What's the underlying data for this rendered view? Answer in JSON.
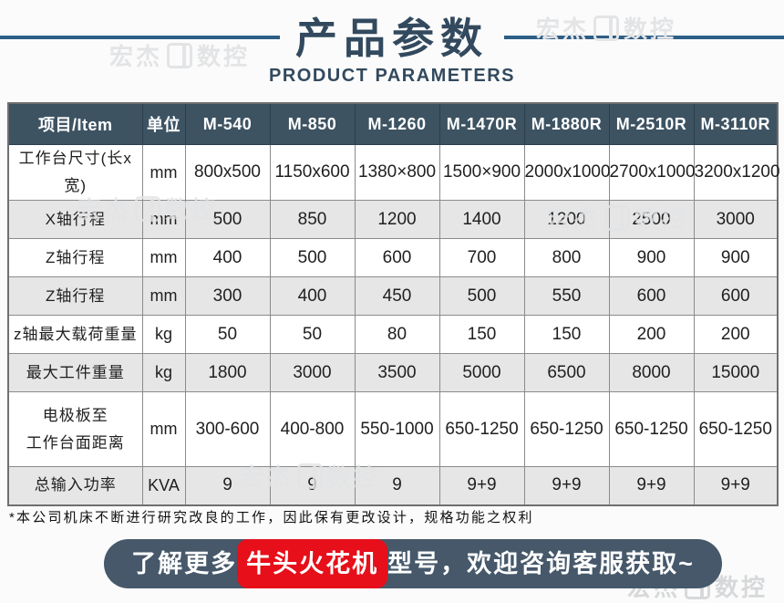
{
  "title": {
    "zh": "产品参数",
    "en": "PRODUCT PARAMETERS"
  },
  "table": {
    "header": [
      "项目/Item",
      "单位",
      "M-540",
      "M-850",
      "M-1260",
      "M-1470R",
      "M-1880R",
      "M-2510R",
      "M-3110R"
    ],
    "rows": [
      {
        "item": [
          "工作台尺寸(长x宽)"
        ],
        "unit": "mm",
        "values": [
          "800x500",
          "1150x600",
          "1380×800",
          "1500×900",
          "2000x1000",
          "2700x1000",
          "3200x1200"
        ]
      },
      {
        "item": [
          "X轴行程"
        ],
        "unit": "mm",
        "values": [
          "500",
          "850",
          "1200",
          "1400",
          "1200",
          "2500",
          "3000"
        ]
      },
      {
        "item": [
          "Z轴行程"
        ],
        "unit": "mm",
        "values": [
          "400",
          "500",
          "600",
          "700",
          "800",
          "900",
          "900"
        ]
      },
      {
        "item": [
          "Z轴行程"
        ],
        "unit": "mm",
        "values": [
          "300",
          "400",
          "450",
          "500",
          "550",
          "600",
          "600"
        ]
      },
      {
        "item": [
          "z轴最大载荷重量"
        ],
        "unit": "kg",
        "values": [
          "50",
          "50",
          "80",
          "150",
          "150",
          "200",
          "200"
        ]
      },
      {
        "item": [
          "最大工件重量"
        ],
        "unit": "kg",
        "values": [
          "1800",
          "3000",
          "3500",
          "5000",
          "6500",
          "8000",
          "15000"
        ]
      },
      {
        "item": [
          "电极板至",
          "工作台面距离"
        ],
        "unit": "mm",
        "values": [
          "300-600",
          "400-800",
          "550-1000",
          "650-1250",
          "650-1250",
          "650-1250",
          "650-1250"
        ]
      },
      {
        "item": [
          "总输入功率"
        ],
        "unit": "KVA",
        "values": [
          "9",
          "9",
          "9",
          "9+9",
          "9+9",
          "9+9",
          "9+9"
        ]
      }
    ]
  },
  "note": "*本公司机床不断进行研究改良的工作，因此保有更改设计，规格功能之权利",
  "banner": {
    "prefix": "了解更多",
    "highlight": "牛头火花机",
    "suffix": "型号，欢迎咨询客服获取~"
  },
  "watermark": {
    "left": "宏杰",
    "right": "数控"
  },
  "colors": {
    "title_navy": "#32495e",
    "decor_line_blue": "#2d5e86",
    "table_header_bg": "#3d5362",
    "row_alt_gray": "#e6e6e6",
    "banner_bg": "#46586a",
    "highlight_red": "#e60f1a"
  }
}
